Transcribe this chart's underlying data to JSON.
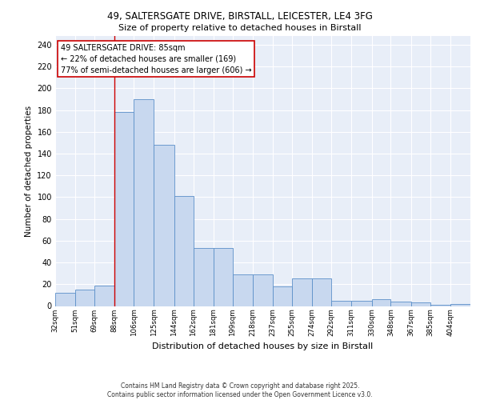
{
  "title1": "49, SALTERSGATE DRIVE, BIRSTALL, LEICESTER, LE4 3FG",
  "title2": "Size of property relative to detached houses in Birstall",
  "xlabel": "Distribution of detached houses by size in Birstall",
  "ylabel": "Number of detached properties",
  "bin_labels": [
    "32sqm",
    "51sqm",
    "69sqm",
    "88sqm",
    "106sqm",
    "125sqm",
    "144sqm",
    "162sqm",
    "181sqm",
    "199sqm",
    "218sqm",
    "237sqm",
    "255sqm",
    "274sqm",
    "292sqm",
    "311sqm",
    "330sqm",
    "348sqm",
    "367sqm",
    "385sqm",
    "404sqm"
  ],
  "bin_edges": [
    32,
    51,
    69,
    88,
    106,
    125,
    144,
    162,
    181,
    199,
    218,
    237,
    255,
    274,
    292,
    311,
    330,
    348,
    367,
    385,
    404
  ],
  "bar_heights": [
    12,
    15,
    19,
    178,
    190,
    148,
    101,
    53,
    53,
    29,
    29,
    18,
    25,
    25,
    5,
    5,
    6,
    4,
    3,
    1,
    2
  ],
  "bar_color": "#c8d8ef",
  "bar_edge_color": "#5b8fc9",
  "bg_color": "#e8eef8",
  "grid_color": "#ffffff",
  "red_line_x": 88,
  "annotation_text": "49 SALTERSGATE DRIVE: 85sqm\n← 22% of detached houses are smaller (169)\n77% of semi-detached houses are larger (606) →",
  "annotation_box_color": "#ffffff",
  "annotation_box_edge": "#cc0000",
  "footer": "Contains HM Land Registry data © Crown copyright and database right 2025.\nContains public sector information licensed under the Open Government Licence v3.0.",
  "yticks": [
    0,
    20,
    40,
    60,
    80,
    100,
    120,
    140,
    160,
    180,
    200,
    220,
    240
  ],
  "ylim": [
    0,
    248
  ],
  "xlim_min": 32,
  "xlim_max": 423
}
